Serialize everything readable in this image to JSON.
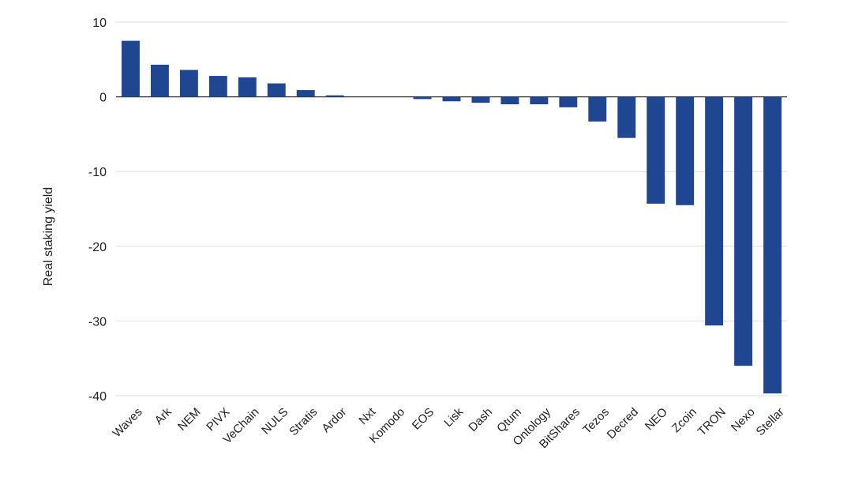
{
  "chart_data": {
    "type": "bar",
    "title": "",
    "xlabel": "",
    "ylabel": "Real staking yield",
    "ylim": [
      -40,
      10
    ],
    "yticks": [
      10,
      0,
      -10,
      -20,
      -30,
      -40
    ],
    "grid": true,
    "legend": "none",
    "bar_color": "#1f4690",
    "categories": [
      "Waves",
      "Ark",
      "NEM",
      "PIVX",
      "VeChain",
      "NULS",
      "Stratis",
      "Ardor",
      "Nxt",
      "Komodo",
      "EOS",
      "Lisk",
      "Dash",
      "Qtum",
      "Ontology",
      "BitShares",
      "Tezos",
      "Decred",
      "NEO",
      "Zcoin",
      "TRON",
      "Nexo",
      "Stellar"
    ],
    "values": [
      7.5,
      4.3,
      3.6,
      2.8,
      2.6,
      1.8,
      0.9,
      0.2,
      0.0,
      0.0,
      -0.3,
      -0.6,
      -0.8,
      -1.0,
      -1.0,
      -1.4,
      -3.3,
      -5.5,
      -14.3,
      -14.5,
      -30.6,
      -36.0,
      -39.7
    ]
  }
}
